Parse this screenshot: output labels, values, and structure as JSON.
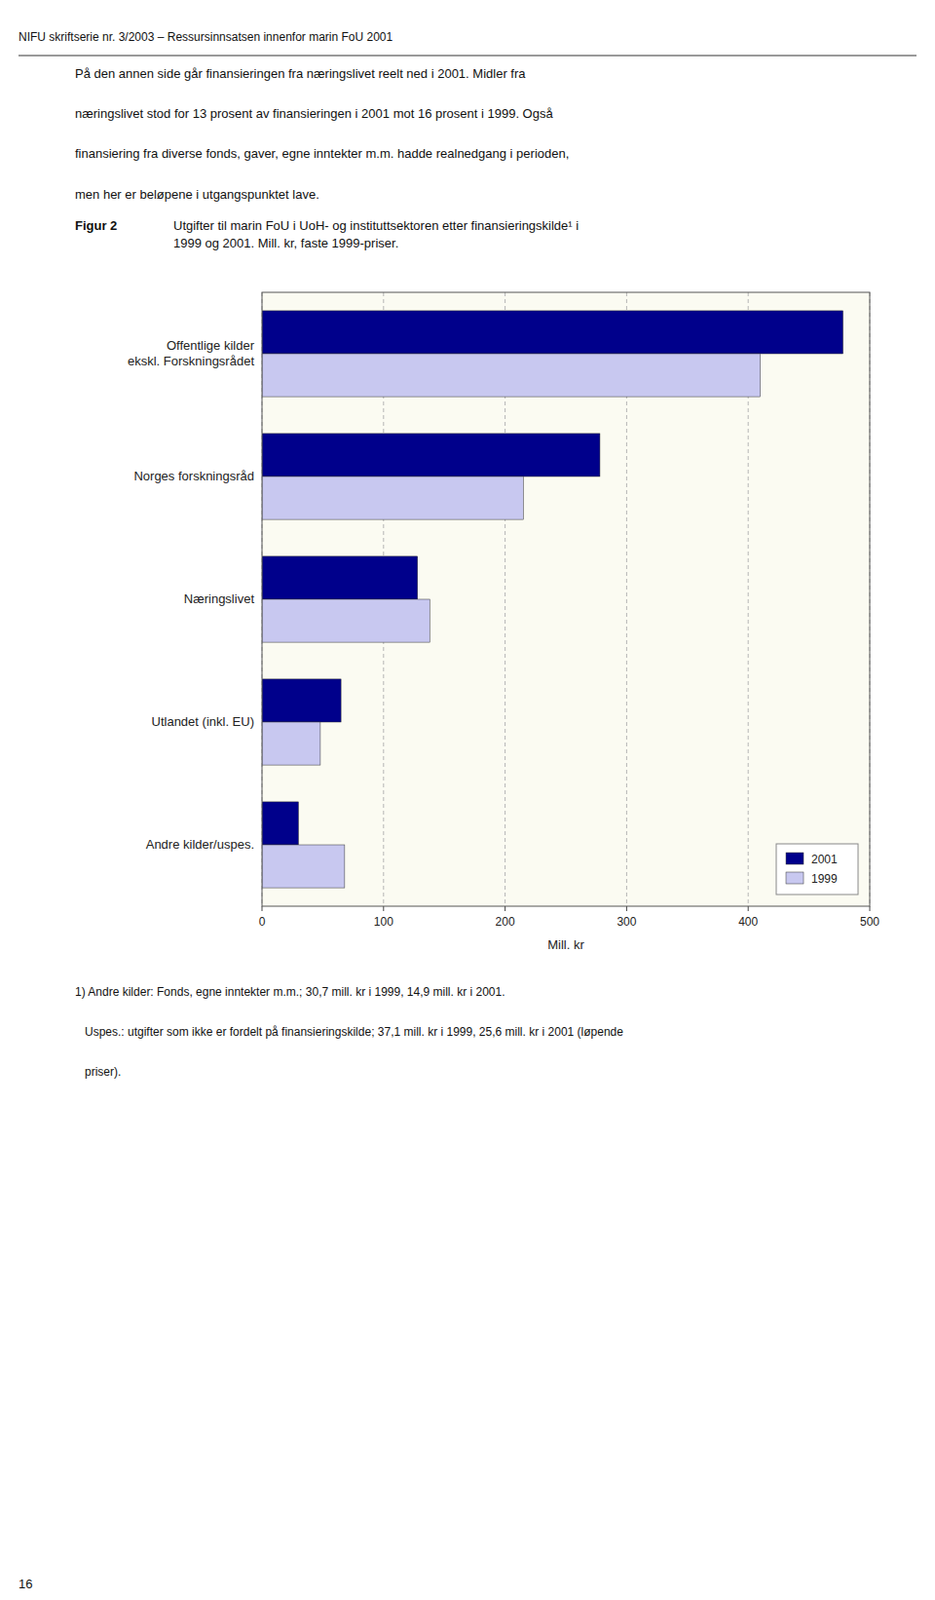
{
  "chart_data": {
    "type": "bar",
    "orientation": "horizontal",
    "title": "Utgifter til marin FoU i UoH- og instituttsektoren etter finansieringskilde¹ i\n1999 og 2001. Mill. kr, faste 1999-priser.",
    "categories": [
      "Offentlige kilder\nekskl. Forskningsrådet",
      "Norges forskningsråd",
      "Næringslivet",
      "Utlandet (inkl. EU)",
      "Andre kilder/uspes."
    ],
    "series": [
      {
        "name": "2001",
        "color": "#00008B",
        "values": [
          478,
          278,
          128,
          65,
          30
        ]
      },
      {
        "name": "1999",
        "color": "#C8C8F0",
        "values": [
          410,
          215,
          138,
          48,
          68
        ]
      }
    ],
    "xlabel": "Mill. kr",
    "xlim": [
      0,
      500
    ],
    "xticks": [
      0,
      100,
      200,
      300,
      400,
      500
    ],
    "grid": true,
    "legend": "lower right",
    "annotations": [
      "NIFU skriftserie nr. 3/2003 – Ressursinnsatsen innenfor marin FoU 2001",
      "På den annen side går finansieringen fra næringslivet reelt ned i 2001. Midler fra",
      "næringslivet stod for 13 prosent av finansieringen i 2001 mot 16 prosent i 1999. Også",
      "finansiering fra diverse fonds, gaver, egne inntekter m.m. hadde realnedgang i perioden,",
      "men her er beløpene i utgangspunktet lave.",
      "Figur 2",
      "1) Andre kilder: Fonds, egne inntekter m.m.; 30,7 mill. kr i 1999, 14,9 mill. kr i 2001.",
      "   Uspes.: utgifter som ikke er fordelt på finansieringskilde; 37,1 mill. kr i 1999, 25,6 mill. kr i 2001 (løpende",
      "   priser).",
      "16"
    ]
  }
}
